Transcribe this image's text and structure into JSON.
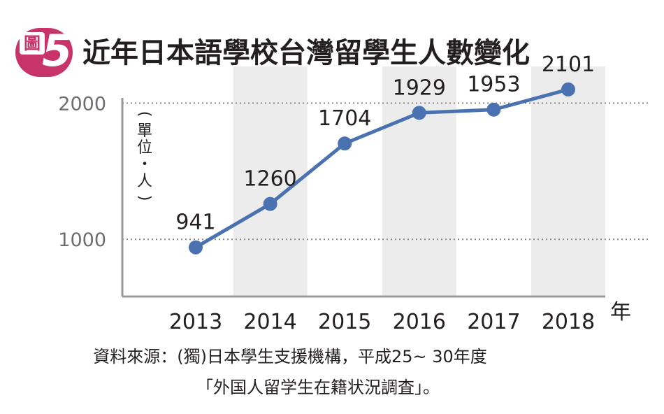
{
  "badge": {
    "label": "圖",
    "number": "5",
    "color": "#c8346a"
  },
  "title": "近年日本語學校台灣留學生人數變化",
  "unit_label": [
    "(",
    "單",
    "位",
    "・",
    "人",
    ")"
  ],
  "source": {
    "line1": "資料來源：(獨)日本學生支援機構，平成25~ 30年度",
    "line2": "「外国人留学生在籍状況調査」。"
  },
  "colors": {
    "line": "#4a72b0",
    "band": "#ececec",
    "grid": "#8a8a8a",
    "axis": "#9a9a9a"
  },
  "chart_data": {
    "type": "line",
    "title": "近年日本語學校台灣留學生人數變化",
    "xlabel": "年",
    "ylabel": "(單位・人)",
    "categories": [
      "2013",
      "2014",
      "2015",
      "2016",
      "2017",
      "2018"
    ],
    "values": [
      941,
      1260,
      1704,
      1929,
      1953,
      2101
    ],
    "data_labels": [
      "941",
      "1260",
      "1704",
      "1929",
      "1953",
      "2101"
    ],
    "y_ticks": [
      1000,
      2000
    ],
    "y_tick_labels": [
      "1000",
      "2000"
    ],
    "ylim": [
      580,
      2270
    ],
    "grid": "dotted horizontal at ticks",
    "alternating_bands": true
  }
}
